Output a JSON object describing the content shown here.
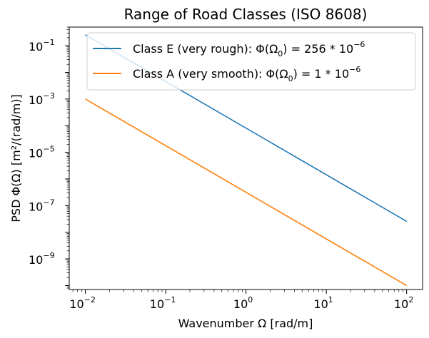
{
  "chart_data": {
    "type": "line",
    "title": "Range of Road Classes (ISO 8608)",
    "xlabel": "Wavenumber Ω [rad/m]",
    "ylabel": "PSD Φ(Ω) [m²/(rad/m)]",
    "xscale": "log",
    "yscale": "log",
    "xlim": [
      0.0063,
      158
    ],
    "ylim": [
      7.1e-11,
      0.5
    ],
    "grid": false,
    "legend_position": "top-right",
    "x_ticks": [
      {
        "base": "10",
        "exp": "−2",
        "value": 0.01
      },
      {
        "base": "10",
        "exp": "−1",
        "value": 0.1
      },
      {
        "base": "10",
        "exp": "0",
        "value": 1
      },
      {
        "base": "10",
        "exp": "1",
        "value": 10
      },
      {
        "base": "10",
        "exp": "2",
        "value": 100
      }
    ],
    "y_ticks": [
      {
        "base": "10",
        "exp": "−9",
        "value": 1e-09
      },
      {
        "base": "10",
        "exp": "−7",
        "value": 1e-07
      },
      {
        "base": "10",
        "exp": "−5",
        "value": 1e-05
      },
      {
        "base": "10",
        "exp": "−3",
        "value": 0.001
      },
      {
        "base": "10",
        "exp": "−1",
        "value": 0.1
      }
    ],
    "series": [
      {
        "name": "Class E (very rough): Φ(Ω0) = 256 * 10^-6",
        "legend_main": "Class E (very rough): Φ(Ω",
        "legend_sub": "0",
        "legend_tail": ") = 256 * 10",
        "legend_exp": "−6",
        "color": "#1f77b4",
        "x": [
          0.01,
          100
        ],
        "y": [
          0.256,
          2.56e-08
        ]
      },
      {
        "name": "Class A (very smooth): Φ(Ω0) = 1 * 10^-6",
        "legend_main": "Class A (very smooth): Φ(Ω",
        "legend_sub": "0",
        "legend_tail": ") = 1 * 10",
        "legend_exp": "−6",
        "color": "#ff7f0e",
        "x": [
          0.01,
          100
        ],
        "y": [
          0.001,
          1e-10
        ]
      }
    ]
  }
}
